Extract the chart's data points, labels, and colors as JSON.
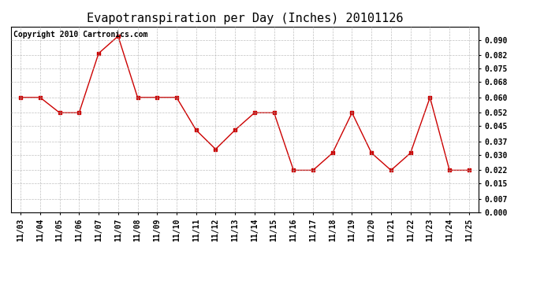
{
  "title": "Evapotranspiration per Day (Inches) 20101126",
  "copyright_text": "Copyright 2010 Cartronics.com",
  "x_labels": [
    "11/03",
    "11/04",
    "11/05",
    "11/06",
    "11/07",
    "11/07",
    "11/08",
    "11/09",
    "11/10",
    "11/11",
    "11/12",
    "11/13",
    "11/14",
    "11/15",
    "11/16",
    "11/17",
    "11/18",
    "11/19",
    "11/20",
    "11/21",
    "11/22",
    "11/23",
    "11/24",
    "11/25"
  ],
  "values": [
    0.06,
    0.06,
    0.052,
    0.052,
    0.083,
    0.092,
    0.06,
    0.06,
    0.06,
    0.043,
    0.033,
    0.043,
    0.052,
    0.052,
    0.022,
    0.022,
    0.031,
    0.052,
    0.031,
    0.022,
    0.031,
    0.06,
    0.022,
    0.022
  ],
  "line_color": "#cc0000",
  "marker": "s",
  "marker_size": 3,
  "ylim": [
    0.0,
    0.097
  ],
  "yticks": [
    0.0,
    0.007,
    0.015,
    0.022,
    0.03,
    0.037,
    0.045,
    0.052,
    0.06,
    0.068,
    0.075,
    0.082,
    0.09
  ],
  "bg_color": "#ffffff",
  "grid_color": "#b0b0b0",
  "title_fontsize": 11,
  "copyright_fontsize": 7,
  "tick_fontsize": 7
}
